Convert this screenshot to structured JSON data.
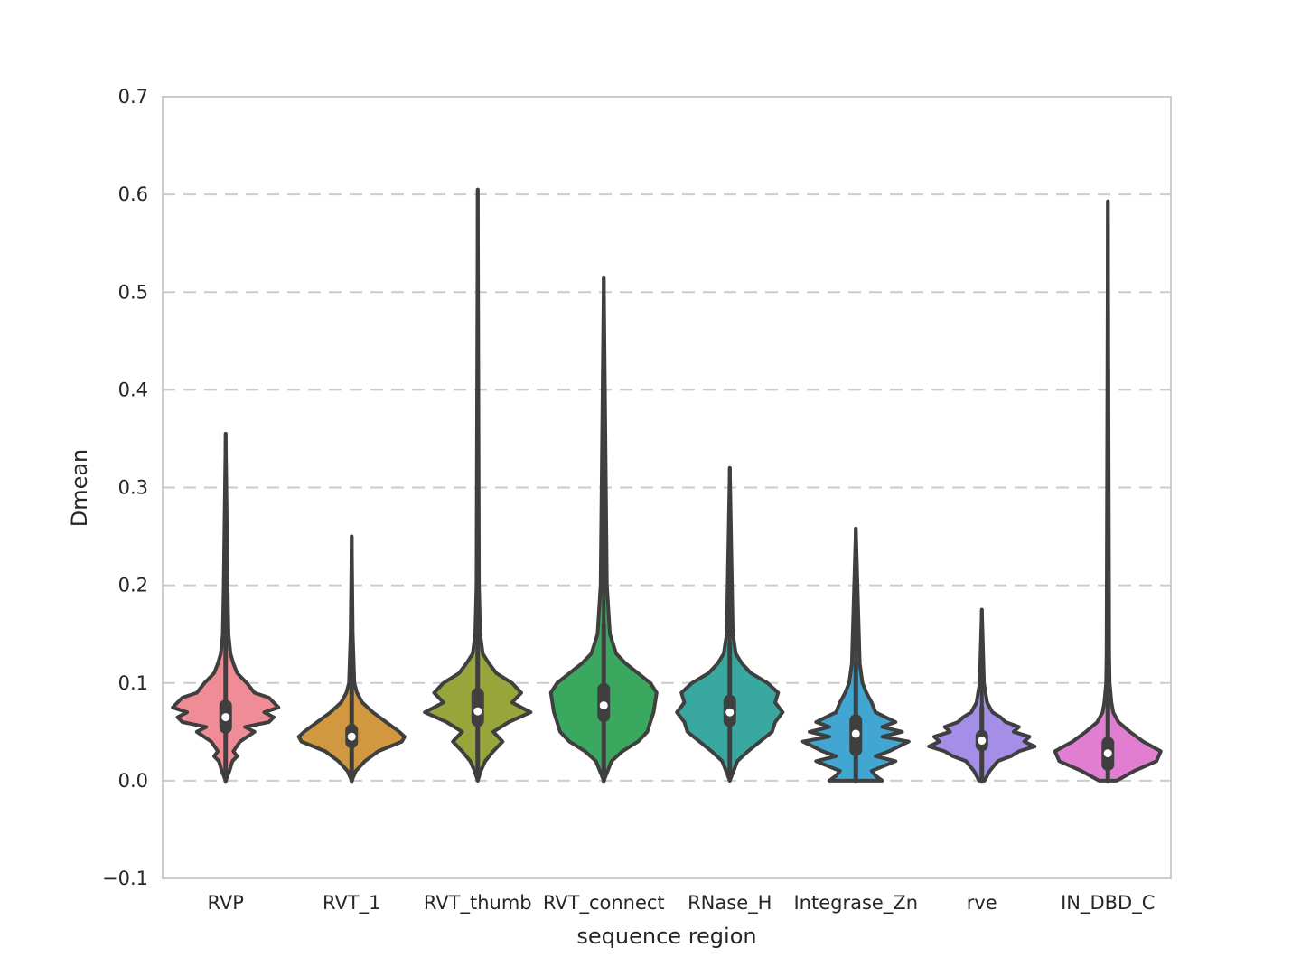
{
  "chart_data": {
    "type": "violin",
    "xlabel": "sequence region",
    "ylabel": "Dmean",
    "ylim": [
      -0.1,
      0.7
    ],
    "yticks": [
      -0.1,
      0.0,
      0.1,
      0.2,
      0.3,
      0.4,
      0.5,
      0.6,
      0.7
    ],
    "ytick_labels": [
      "−0.1",
      "0.0",
      "0.1",
      "0.2",
      "0.3",
      "0.4",
      "0.5",
      "0.6",
      "0.7"
    ],
    "grid": "horizontal-dashed",
    "categories": [
      "RVP",
      "RVT_1",
      "RVT_thumb",
      "RVT_connect",
      "RNase_H",
      "Integrase_Zn",
      "rve",
      "IN_DBD_C"
    ],
    "violins": [
      {
        "name": "RVP",
        "color": "#f08c96",
        "min": 0.0,
        "max": 0.355,
        "q1": 0.048,
        "median": 0.065,
        "q3": 0.083,
        "whisker_low": 0.0,
        "whisker_high": 0.155,
        "profile": [
          [
            0.0,
            0.0
          ],
          [
            0.01,
            0.04
          ],
          [
            0.02,
            0.07
          ],
          [
            0.025,
            0.12
          ],
          [
            0.03,
            0.08
          ],
          [
            0.04,
            0.15
          ],
          [
            0.05,
            0.3
          ],
          [
            0.055,
            0.2
          ],
          [
            0.06,
            0.45
          ],
          [
            0.065,
            0.5
          ],
          [
            0.07,
            0.4
          ],
          [
            0.075,
            0.55
          ],
          [
            0.08,
            0.5
          ],
          [
            0.085,
            0.45
          ],
          [
            0.09,
            0.3
          ],
          [
            0.1,
            0.22
          ],
          [
            0.11,
            0.12
          ],
          [
            0.12,
            0.08
          ],
          [
            0.13,
            0.05
          ],
          [
            0.15,
            0.03
          ],
          [
            0.2,
            0.02
          ],
          [
            0.355,
            0.0
          ]
        ]
      },
      {
        "name": "RVT_1",
        "color": "#d19840",
        "min": 0.0,
        "max": 0.25,
        "q1": 0.033,
        "median": 0.045,
        "q3": 0.058,
        "whisker_low": 0.0,
        "whisker_high": 0.1,
        "profile": [
          [
            0.0,
            0.0
          ],
          [
            0.01,
            0.08
          ],
          [
            0.02,
            0.25
          ],
          [
            0.03,
            0.5
          ],
          [
            0.04,
            0.95
          ],
          [
            0.045,
            1.0
          ],
          [
            0.05,
            0.9
          ],
          [
            0.06,
            0.65
          ],
          [
            0.07,
            0.4
          ],
          [
            0.08,
            0.2
          ],
          [
            0.09,
            0.1
          ],
          [
            0.1,
            0.05
          ],
          [
            0.15,
            0.02
          ],
          [
            0.25,
            0.0
          ]
        ]
      },
      {
        "name": "RVT_thumb",
        "color": "#97a53b",
        "min": 0.0,
        "max": 0.605,
        "q1": 0.055,
        "median": 0.071,
        "q3": 0.095,
        "whisker_low": 0.005,
        "whisker_high": 0.16,
        "profile": [
          [
            0.0,
            0.0
          ],
          [
            0.01,
            0.05
          ],
          [
            0.02,
            0.12
          ],
          [
            0.03,
            0.25
          ],
          [
            0.04,
            0.4
          ],
          [
            0.05,
            0.25
          ],
          [
            0.06,
            0.5
          ],
          [
            0.07,
            0.85
          ],
          [
            0.08,
            0.55
          ],
          [
            0.09,
            0.7
          ],
          [
            0.1,
            0.55
          ],
          [
            0.11,
            0.3
          ],
          [
            0.12,
            0.18
          ],
          [
            0.13,
            0.08
          ],
          [
            0.15,
            0.04
          ],
          [
            0.2,
            0.02
          ],
          [
            0.605,
            0.0
          ]
        ]
      },
      {
        "name": "RVT_connect",
        "color": "#3aa95f",
        "min": 0.0,
        "max": 0.515,
        "q1": 0.06,
        "median": 0.077,
        "q3": 0.1,
        "whisker_low": 0.0,
        "whisker_high": 0.16,
        "profile": [
          [
            0.0,
            0.0
          ],
          [
            0.02,
            0.05
          ],
          [
            0.03,
            0.12
          ],
          [
            0.04,
            0.22
          ],
          [
            0.05,
            0.28
          ],
          [
            0.06,
            0.3
          ],
          [
            0.07,
            0.32
          ],
          [
            0.08,
            0.33
          ],
          [
            0.09,
            0.34
          ],
          [
            0.1,
            0.3
          ],
          [
            0.11,
            0.22
          ],
          [
            0.12,
            0.14
          ],
          [
            0.13,
            0.08
          ],
          [
            0.15,
            0.04
          ],
          [
            0.2,
            0.02
          ],
          [
            0.515,
            0.0
          ]
        ]
      },
      {
        "name": "RNase_H",
        "color": "#38a8a0",
        "min": 0.0,
        "max": 0.32,
        "q1": 0.055,
        "median": 0.07,
        "q3": 0.088,
        "whisker_low": 0.005,
        "whisker_high": 0.14,
        "profile": [
          [
            0.0,
            0.0
          ],
          [
            0.02,
            0.05
          ],
          [
            0.03,
            0.12
          ],
          [
            0.04,
            0.2
          ],
          [
            0.05,
            0.28
          ],
          [
            0.06,
            0.3
          ],
          [
            0.07,
            0.35
          ],
          [
            0.08,
            0.3
          ],
          [
            0.09,
            0.32
          ],
          [
            0.1,
            0.25
          ],
          [
            0.11,
            0.14
          ],
          [
            0.12,
            0.08
          ],
          [
            0.13,
            0.04
          ],
          [
            0.15,
            0.02
          ],
          [
            0.32,
            0.0
          ]
        ]
      },
      {
        "name": "Integrase_Zn",
        "color": "#42a6d2",
        "min": 0.0,
        "max": 0.258,
        "q1": 0.025,
        "median": 0.048,
        "q3": 0.068,
        "whisker_low": 0.0,
        "whisker_high": 0.12,
        "profile": [
          [
            0.0,
            0.2
          ],
          [
            0.005,
            0.15
          ],
          [
            0.01,
            0.12
          ],
          [
            0.02,
            0.3
          ],
          [
            0.025,
            0.15
          ],
          [
            0.03,
            0.25
          ],
          [
            0.04,
            0.4
          ],
          [
            0.045,
            0.2
          ],
          [
            0.05,
            0.35
          ],
          [
            0.055,
            0.2
          ],
          [
            0.06,
            0.3
          ],
          [
            0.07,
            0.15
          ],
          [
            0.08,
            0.12
          ],
          [
            0.09,
            0.08
          ],
          [
            0.1,
            0.05
          ],
          [
            0.12,
            0.03
          ],
          [
            0.258,
            0.0
          ]
        ]
      },
      {
        "name": "rve",
        "color": "#a48ee8",
        "min": 0.0,
        "max": 0.175,
        "q1": 0.03,
        "median": 0.041,
        "q3": 0.052,
        "whisker_low": 0.0,
        "whisker_high": 0.075,
        "profile": [
          [
            0.0,
            0.05
          ],
          [
            0.01,
            0.15
          ],
          [
            0.02,
            0.3
          ],
          [
            0.025,
            0.55
          ],
          [
            0.03,
            0.7
          ],
          [
            0.035,
            1.0
          ],
          [
            0.04,
            0.8
          ],
          [
            0.045,
            0.9
          ],
          [
            0.05,
            0.6
          ],
          [
            0.055,
            0.7
          ],
          [
            0.06,
            0.45
          ],
          [
            0.065,
            0.35
          ],
          [
            0.07,
            0.2
          ],
          [
            0.08,
            0.1
          ],
          [
            0.1,
            0.04
          ],
          [
            0.175,
            0.0
          ]
        ]
      },
      {
        "name": "IN_DBD_C",
        "color": "#e27ed2",
        "min": 0.0,
        "max": 0.593,
        "q1": 0.01,
        "median": 0.028,
        "q3": 0.045,
        "whisker_low": 0.0,
        "whisker_high": 0.13,
        "profile": [
          [
            0.0,
            0.1
          ],
          [
            0.005,
            0.2
          ],
          [
            0.01,
            0.3
          ],
          [
            0.02,
            0.55
          ],
          [
            0.03,
            0.6
          ],
          [
            0.035,
            0.5
          ],
          [
            0.04,
            0.4
          ],
          [
            0.05,
            0.25
          ],
          [
            0.06,
            0.12
          ],
          [
            0.07,
            0.06
          ],
          [
            0.08,
            0.04
          ],
          [
            0.1,
            0.02
          ],
          [
            0.13,
            0.015
          ],
          [
            0.593,
            0.0
          ]
        ]
      }
    ]
  }
}
